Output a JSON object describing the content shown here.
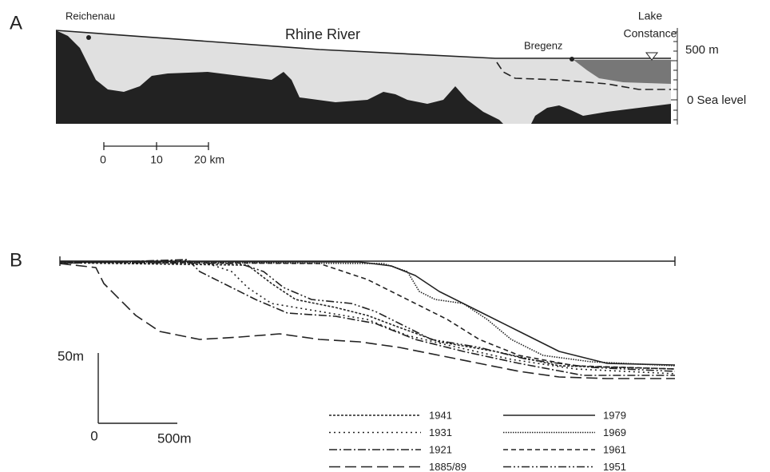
{
  "panel_a": {
    "label": "A",
    "places": [
      "Reichenau",
      "Bregenz"
    ],
    "river": "Rhine River",
    "lake": [
      "Lake",
      "Constance"
    ],
    "elevation_labels": [
      "500 m",
      "0 Sea level"
    ],
    "scale_labels": [
      "0",
      "10",
      "20 km"
    ]
  },
  "panel_b": {
    "label": "B",
    "scale_labels": [
      "50m",
      "0",
      "500m"
    ],
    "legend": [
      "1941",
      "1931",
      "1921",
      "1885/89",
      "1979",
      "1969",
      "1961",
      "1951"
    ]
  }
}
